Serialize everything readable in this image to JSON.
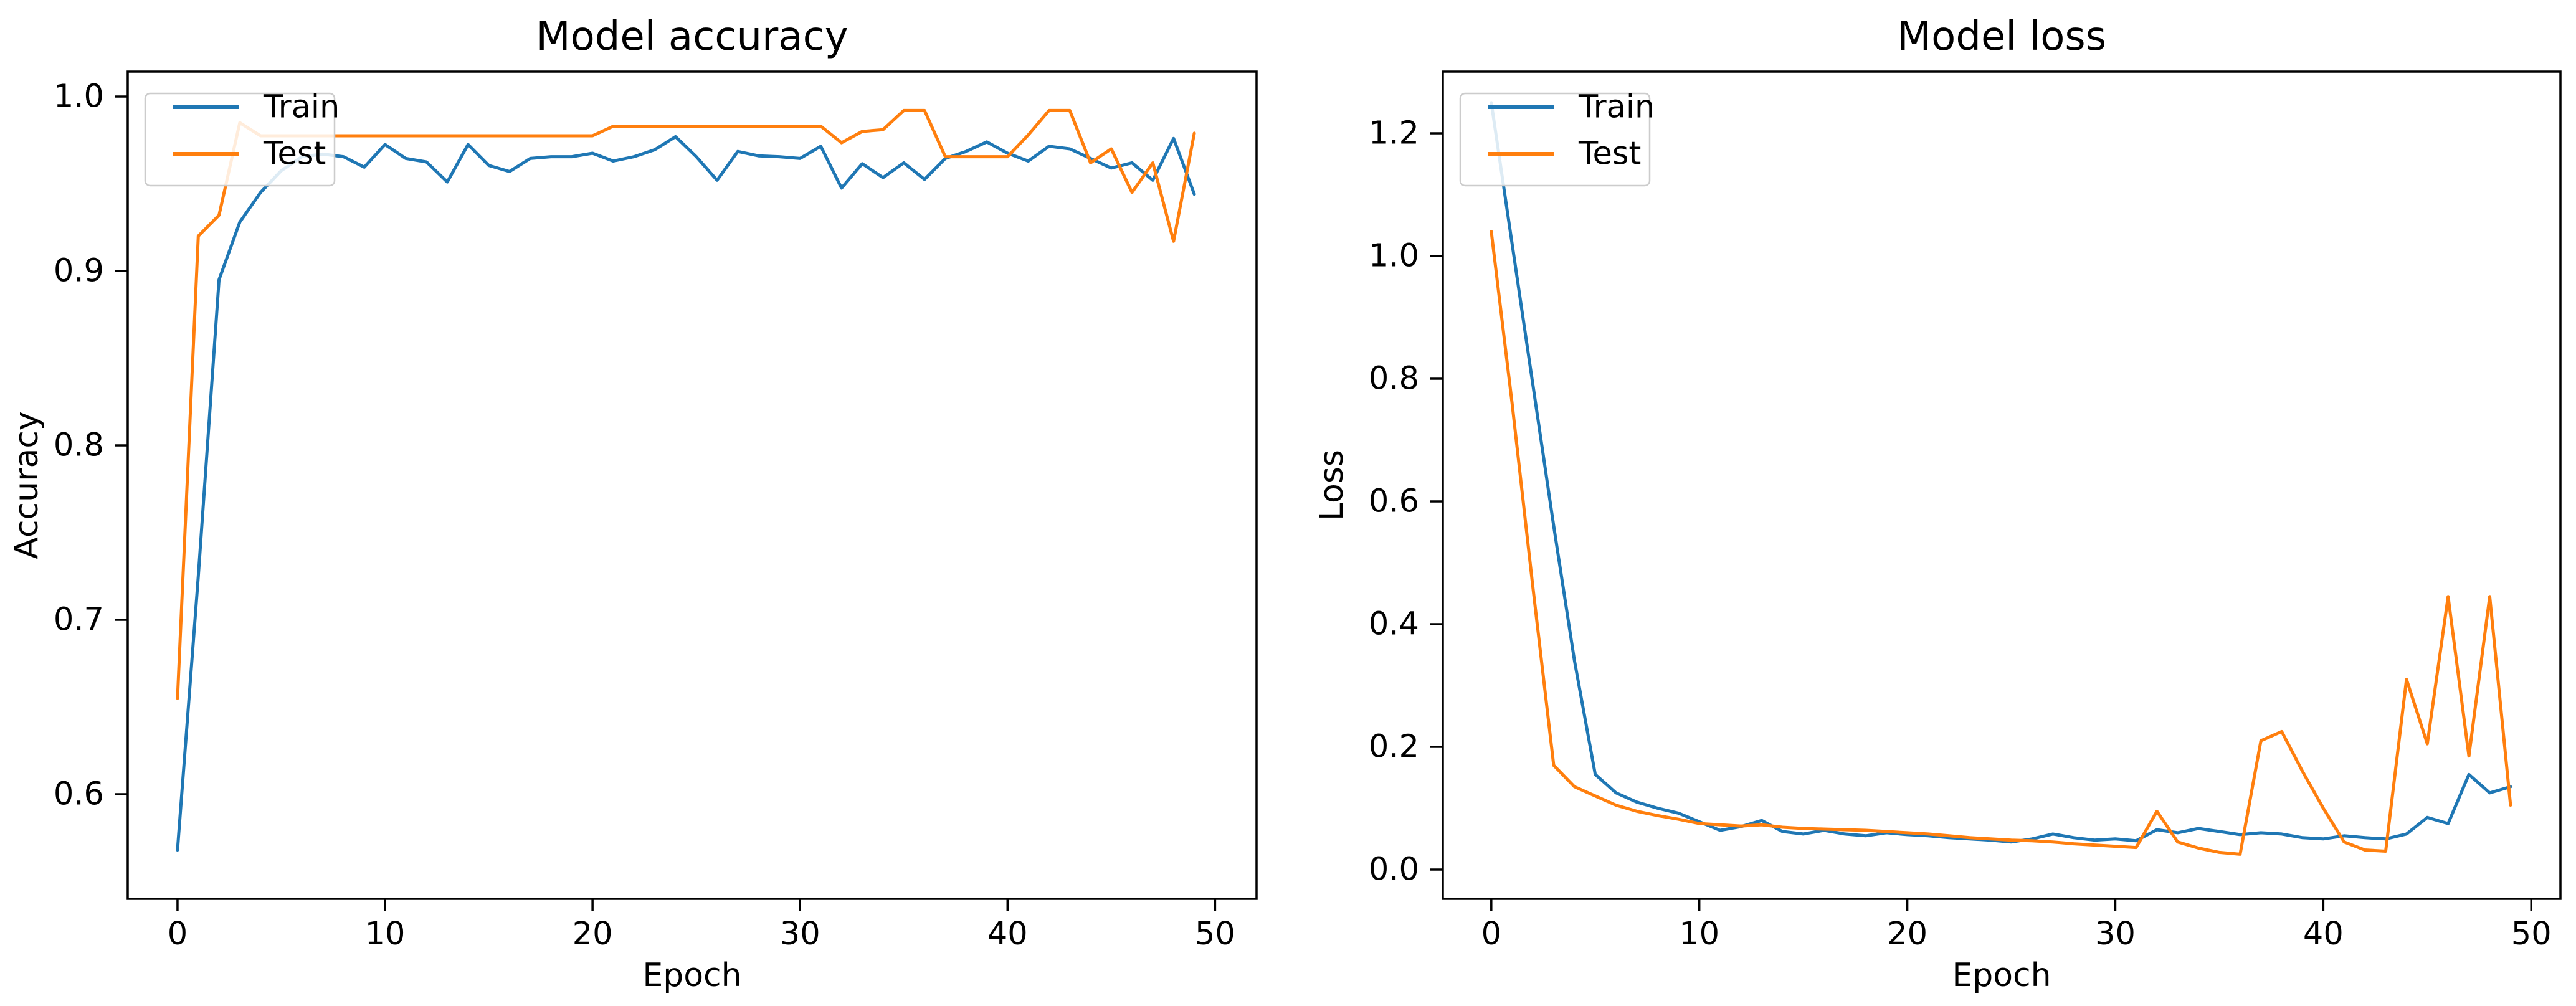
{
  "figure": {
    "background": "#ffffff"
  },
  "colors": {
    "train": "#1f77b4",
    "test": "#ff7f0e",
    "axis": "#000000",
    "text": "#000000",
    "legend_border": "#cccccc",
    "legend_background": "rgba(255,255,255,0.85)"
  },
  "chart_data": [
    {
      "id": "accuracy",
      "type": "line",
      "title": "Model accuracy",
      "xlabel": "Epoch",
      "ylabel": "Accuracy",
      "grid": false,
      "legend": {
        "position": "upper-left",
        "entries": [
          "Train",
          "Test"
        ]
      },
      "xlim": [
        -2.4,
        52.0
      ],
      "ylim": [
        0.54,
        1.0143
      ],
      "x_ticks": [
        0,
        10,
        20,
        30,
        40,
        50
      ],
      "x_tick_labels": [
        "0",
        "10",
        "20",
        "30",
        "40",
        "50"
      ],
      "y_ticks": [
        0.6,
        0.7,
        0.8,
        0.9,
        1.0
      ],
      "y_tick_labels": [
        "0.6",
        "0.7",
        "0.8",
        "0.9",
        "1.0"
      ],
      "x": [
        0,
        1,
        2,
        3,
        4,
        5,
        6,
        7,
        8,
        9,
        10,
        11,
        12,
        13,
        14,
        15,
        16,
        17,
        18,
        19,
        20,
        21,
        22,
        23,
        24,
        25,
        26,
        27,
        28,
        29,
        30,
        31,
        32,
        33,
        34,
        35,
        36,
        37,
        38,
        39,
        40,
        41,
        42,
        43,
        44,
        45,
        46,
        47,
        48,
        49
      ],
      "series": [
        {
          "name": "Train",
          "color": "#1f77b4",
          "values": [
            0.568,
            0.725,
            0.895,
            0.928,
            0.945,
            0.9575,
            0.9655,
            0.967,
            0.9655,
            0.9595,
            0.9725,
            0.9645,
            0.9625,
            0.951,
            0.9725,
            0.9605,
            0.957,
            0.9645,
            0.9655,
            0.9655,
            0.9675,
            0.963,
            0.9655,
            0.9695,
            0.977,
            0.9655,
            0.952,
            0.9685,
            0.966,
            0.9655,
            0.9645,
            0.9715,
            0.9475,
            0.9615,
            0.9535,
            0.962,
            0.9525,
            0.9645,
            0.9685,
            0.974,
            0.9675,
            0.963,
            0.9715,
            0.97,
            0.9645,
            0.959,
            0.962,
            0.952,
            0.976,
            0.944
          ]
        },
        {
          "name": "Test",
          "color": "#ff7f0e",
          "values": [
            0.655,
            0.92,
            0.932,
            0.985,
            0.9775,
            0.9775,
            0.9775,
            0.9775,
            0.9775,
            0.9775,
            0.9775,
            0.9775,
            0.9775,
            0.9775,
            0.9775,
            0.9775,
            0.9775,
            0.9775,
            0.9775,
            0.9775,
            0.9775,
            0.983,
            0.983,
            0.983,
            0.983,
            0.983,
            0.983,
            0.983,
            0.983,
            0.983,
            0.983,
            0.983,
            0.9735,
            0.98,
            0.981,
            0.992,
            0.992,
            0.9655,
            0.9655,
            0.9655,
            0.9655,
            0.978,
            0.992,
            0.992,
            0.962,
            0.97,
            0.945,
            0.962,
            0.917,
            0.979
          ]
        }
      ]
    },
    {
      "id": "loss",
      "type": "line",
      "title": "Model loss",
      "xlabel": "Epoch",
      "ylabel": "Loss",
      "grid": false,
      "legend": {
        "position": "upper-left",
        "entries": [
          "Train",
          "Test"
        ]
      },
      "xlim": [
        -2.33,
        51.4
      ],
      "ylim": [
        -0.0477,
        1.3005
      ],
      "x_ticks": [
        0,
        10,
        20,
        30,
        40,
        50
      ],
      "x_tick_labels": [
        "0",
        "10",
        "20",
        "30",
        "40",
        "50"
      ],
      "y_ticks": [
        0.0,
        0.2,
        0.4,
        0.6,
        0.8,
        1.0,
        1.2
      ],
      "y_tick_labels": [
        "0.0",
        "0.2",
        "0.4",
        "0.6",
        "0.8",
        "1.0",
        "1.2"
      ],
      "x": [
        0,
        1,
        2,
        3,
        4,
        5,
        6,
        7,
        8,
        9,
        10,
        11,
        12,
        13,
        14,
        15,
        16,
        17,
        18,
        19,
        20,
        21,
        22,
        23,
        24,
        25,
        26,
        27,
        28,
        29,
        30,
        31,
        32,
        33,
        34,
        35,
        36,
        37,
        38,
        39,
        40,
        41,
        42,
        43,
        44,
        45,
        46,
        47,
        48,
        49
      ],
      "series": [
        {
          "name": "Train",
          "color": "#1f77b4",
          "values": [
            1.25,
            1.02,
            0.79,
            0.56,
            0.34,
            0.155,
            0.125,
            0.11,
            0.1,
            0.092,
            0.078,
            0.064,
            0.07,
            0.08,
            0.062,
            0.058,
            0.064,
            0.058,
            0.055,
            0.06,
            0.057,
            0.055,
            0.052,
            0.05,
            0.048,
            0.045,
            0.05,
            0.058,
            0.052,
            0.048,
            0.05,
            0.047,
            0.065,
            0.06,
            0.067,
            0.062,
            0.057,
            0.06,
            0.058,
            0.052,
            0.05,
            0.055,
            0.052,
            0.05,
            0.058,
            0.085,
            0.075,
            0.155,
            0.125,
            0.135
          ]
        },
        {
          "name": "Test",
          "color": "#ff7f0e",
          "values": [
            1.04,
            0.76,
            0.46,
            0.17,
            0.135,
            0.12,
            0.105,
            0.095,
            0.088,
            0.082,
            0.075,
            0.073,
            0.071,
            0.073,
            0.069,
            0.067,
            0.066,
            0.065,
            0.064,
            0.062,
            0.06,
            0.058,
            0.055,
            0.052,
            0.05,
            0.048,
            0.047,
            0.045,
            0.042,
            0.04,
            0.038,
            0.036,
            0.095,
            0.045,
            0.035,
            0.028,
            0.025,
            0.21,
            0.225,
            0.16,
            0.1,
            0.045,
            0.032,
            0.03,
            0.31,
            0.205,
            0.445,
            0.185,
            0.445,
            0.105
          ]
        }
      ]
    }
  ]
}
